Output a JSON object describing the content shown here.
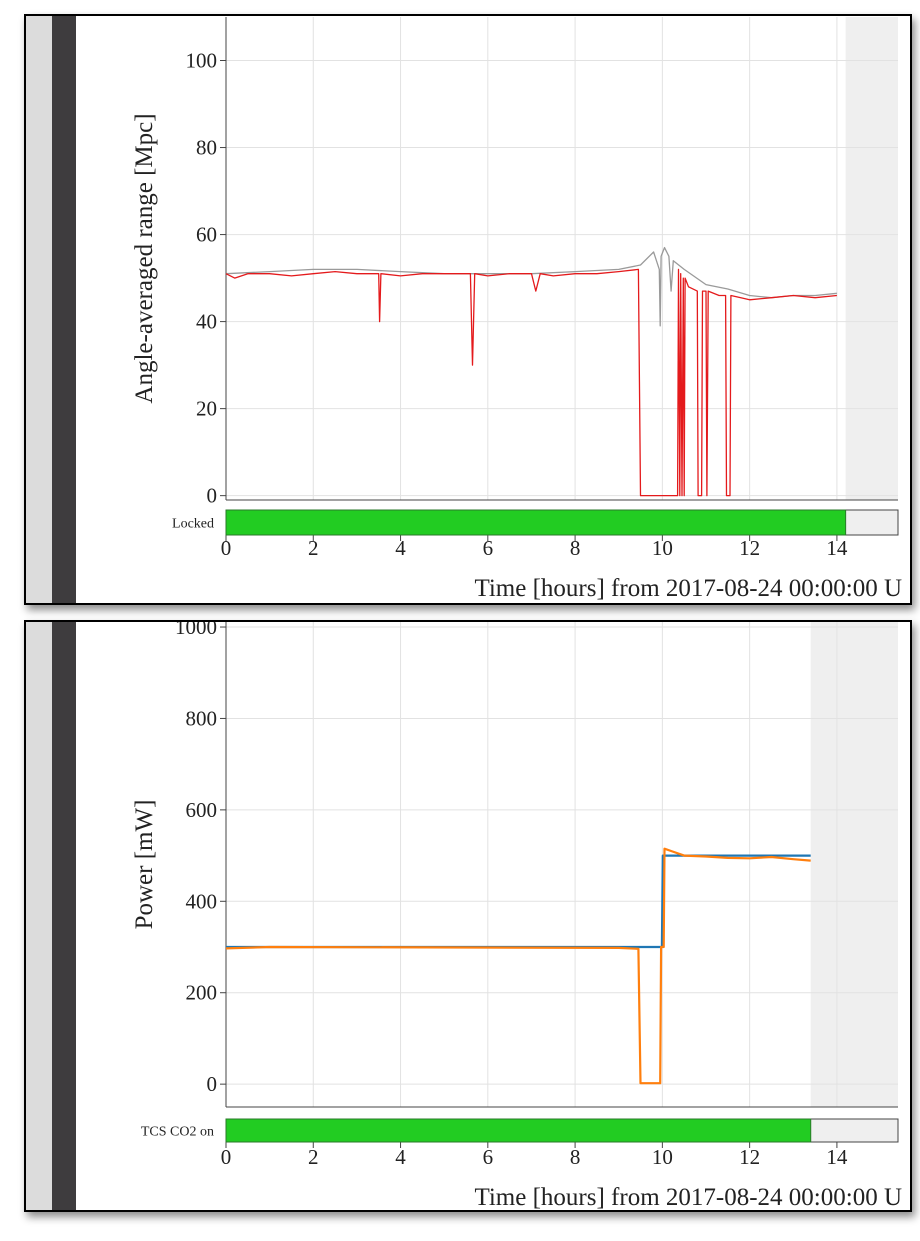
{
  "chart_data": [
    {
      "type": "line",
      "ylabel": "Angle-averaged range [Mpc]",
      "xlabel": "Time [hours] from 2017-08-24 00:00:00 U",
      "xlim": [
        0,
        15.4
      ],
      "ylim": [
        -1,
        110
      ],
      "xticks": [
        0,
        2,
        4,
        6,
        8,
        10,
        12,
        14
      ],
      "yticks": [
        0,
        20,
        40,
        60,
        80,
        100
      ],
      "grid": true,
      "shade": [
        14.2,
        15.4
      ],
      "segment_label": "Locked",
      "segment_color": "#22cc22",
      "segments": [
        {
          "start": 0,
          "end": 14.2
        }
      ],
      "series": [
        {
          "color": "#9a9a9a",
          "x": [
            0,
            1,
            2,
            3,
            4,
            5,
            6,
            7,
            8,
            9,
            9.5,
            9.8,
            9.93,
            9.95,
            9.97,
            10.05,
            10.15,
            10.2,
            10.25,
            10.5,
            11,
            11.5,
            12,
            12.5,
            13,
            13.5,
            14.0
          ],
          "values": [
            51,
            51.5,
            52,
            52,
            51.5,
            51,
            51,
            51,
            51.5,
            52,
            53,
            56,
            52,
            39,
            55,
            57,
            55,
            47,
            54,
            52,
            48.5,
            47.5,
            46,
            45.5,
            46,
            46,
            46.5
          ]
        },
        {
          "color": "#e41a1c",
          "x": [
            0,
            0.2,
            0.5,
            1,
            1.5,
            2,
            2.5,
            3,
            3.5,
            3.52,
            3.55,
            4,
            4.5,
            5,
            5.6,
            5.65,
            5.7,
            6,
            6.5,
            7,
            7.1,
            7.2,
            7.5,
            8,
            8.5,
            9,
            9.45,
            9.5,
            10.35,
            10.37,
            10.4,
            10.42,
            10.45,
            10.48,
            10.5,
            10.52,
            10.6,
            10.8,
            10.82,
            10.9,
            10.92,
            11.0,
            11.02,
            11.05,
            11.3,
            11.45,
            11.47,
            11.55,
            11.57,
            11.8,
            12,
            12.5,
            13,
            13.5,
            14.0
          ],
          "values": [
            51,
            50,
            51,
            51,
            50.5,
            51,
            51.5,
            51,
            51,
            40,
            51,
            50.5,
            51,
            51,
            51,
            30,
            51,
            50.5,
            51,
            51,
            47,
            51,
            50.5,
            51,
            51,
            51.5,
            52,
            0,
            0,
            52,
            0,
            51,
            0,
            50,
            0,
            50,
            48,
            47,
            0,
            0,
            47,
            47,
            0,
            47,
            46,
            46,
            0,
            0,
            46,
            45.5,
            45,
            45.5,
            46,
            45.5,
            46
          ]
        }
      ]
    },
    {
      "type": "line",
      "ylabel": "Power [mW]",
      "xlabel": "Time [hours] from 2017-08-24 00:00:00 U",
      "xlim": [
        0,
        15.4
      ],
      "ylim": [
        -50,
        1011
      ],
      "xticks": [
        0,
        2,
        4,
        6,
        8,
        10,
        12,
        14
      ],
      "yticks": [
        0,
        200,
        400,
        600,
        800,
        1000
      ],
      "grid": true,
      "shade": [
        13.4,
        15.4
      ],
      "segment_label": "TCS CO2 on",
      "segment_color": "#22cc22",
      "segments": [
        {
          "start": 0,
          "end": 13.4
        }
      ],
      "series": [
        {
          "color": "#1f77b4",
          "x": [
            0,
            9.99,
            10.01,
            13.4
          ],
          "values": [
            300,
            300,
            500,
            500
          ]
        },
        {
          "color": "#ff7f0e",
          "x": [
            0,
            1,
            9,
            9.45,
            9.5,
            9.95,
            9.97,
            10.03,
            10.05,
            10.2,
            10.5,
            11,
            11.5,
            12,
            12.5,
            13,
            13.4
          ],
          "values": [
            297,
            300,
            298,
            296,
            2,
            2,
            300,
            300,
            515,
            510,
            500,
            498,
            495,
            494,
            497,
            492,
            489
          ]
        }
      ]
    }
  ]
}
